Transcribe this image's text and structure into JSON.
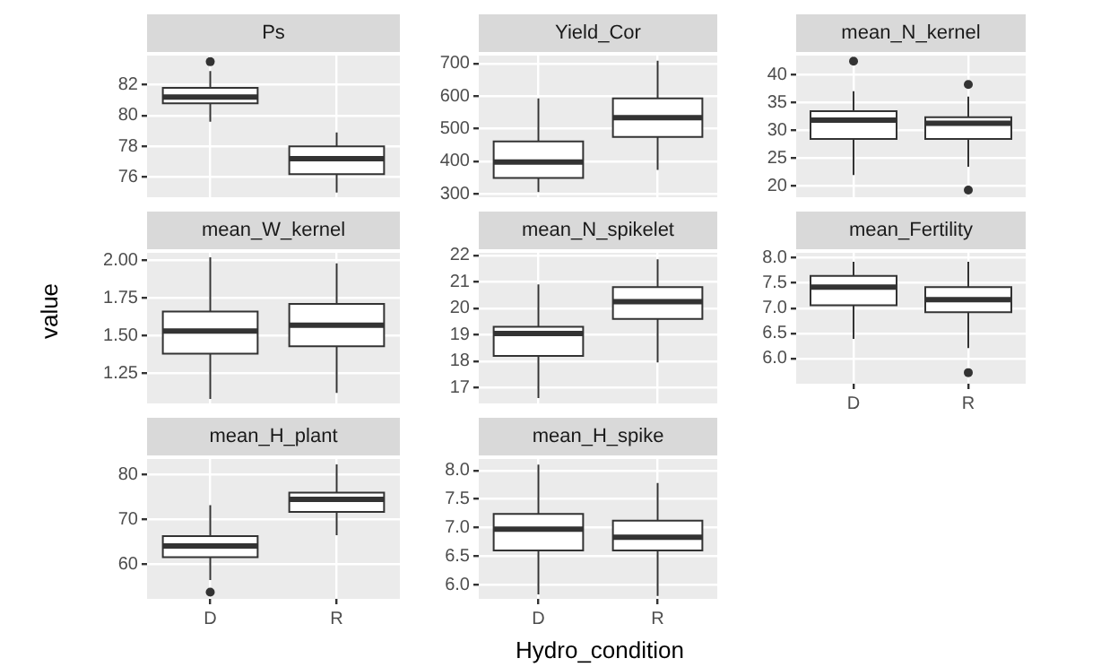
{
  "chart_data": [
    {
      "type": "box",
      "title": "Ps",
      "categories": [
        null,
        null
      ],
      "ylim": [
        74.7,
        83.9
      ],
      "yticks": [
        76,
        78,
        80,
        82
      ],
      "grid": true,
      "tick_labels": "y",
      "boxes": [
        {
          "low": 79.6,
          "q1": 80.8,
          "median": 81.2,
          "q3": 81.8,
          "high": 82.9,
          "outliers": [
            83.5
          ]
        },
        {
          "low": 75.0,
          "q1": 76.2,
          "median": 77.2,
          "q3": 78.0,
          "high": 78.9
        }
      ]
    },
    {
      "type": "box",
      "title": "Yield_Cor",
      "categories": [
        null,
        null
      ],
      "ylim": [
        290,
        724
      ],
      "yticks": [
        300,
        400,
        500,
        600,
        700
      ],
      "grid": true,
      "tick_labels": "y",
      "boxes": [
        {
          "low": 306,
          "q1": 349,
          "median": 398,
          "q3": 461,
          "high": 593
        },
        {
          "low": 374,
          "q1": 475,
          "median": 534,
          "q3": 593,
          "high": 708
        }
      ]
    },
    {
      "type": "box",
      "title": "mean_N_kernel",
      "categories": [
        null,
        null
      ],
      "ylim": [
        18,
        43.5
      ],
      "yticks": [
        20,
        25,
        30,
        35,
        40
      ],
      "grid": true,
      "tick_labels": "y",
      "boxes": [
        {
          "low": 22.0,
          "q1": 28.5,
          "median": 31.9,
          "q3": 33.5,
          "high": 37.1,
          "outliers": [
            42.5
          ]
        },
        {
          "low": 23.5,
          "q1": 28.5,
          "median": 31.3,
          "q3": 32.4,
          "high": 36.1,
          "outliers": [
            38.3,
            19.3
          ]
        }
      ]
    },
    {
      "type": "box",
      "title": "mean_W_kernel",
      "ylabel": "value",
      "categories": [
        null,
        null
      ],
      "ylim": [
        1.05,
        2.05
      ],
      "yticks": [
        {
          "value": 1.25,
          "label": "1.25"
        },
        {
          "value": 1.5,
          "label": "1.50"
        },
        {
          "value": 1.75,
          "label": "1.75"
        },
        {
          "value": 2,
          "label": "2.00"
        }
      ],
      "grid": true,
      "tick_labels": "y",
      "boxes": [
        {
          "low": 1.08,
          "q1": 1.38,
          "median": 1.53,
          "q3": 1.66,
          "high": 2.02
        },
        {
          "low": 1.12,
          "q1": 1.43,
          "median": 1.57,
          "q3": 1.71,
          "high": 1.98
        }
      ]
    },
    {
      "type": "box",
      "title": "mean_N_spikelet",
      "categories": [
        null,
        null
      ],
      "ylim": [
        16.4,
        22.1
      ],
      "yticks": [
        17,
        18,
        19,
        20,
        21,
        22
      ],
      "grid": true,
      "tick_labels": "y",
      "boxes": [
        {
          "low": 16.6,
          "q1": 18.2,
          "median": 19.05,
          "q3": 19.3,
          "high": 20.9
        },
        {
          "low": 17.95,
          "q1": 19.6,
          "median": 20.25,
          "q3": 20.8,
          "high": 21.85
        }
      ]
    },
    {
      "type": "box",
      "title": "mean_Fertility",
      "categories": [
        "D",
        "R"
      ],
      "ylim": [
        5.5,
        8.1
      ],
      "yticks": [
        {
          "value": 6,
          "label": "6.0"
        },
        {
          "value": 6.5,
          "label": "6.5"
        },
        {
          "value": 7,
          "label": "7.0"
        },
        {
          "value": 7.5,
          "label": "7.5"
        },
        {
          "value": 8,
          "label": "8.0"
        }
      ],
      "grid": true,
      "boxes": [
        {
          "low": 6.39,
          "q1": 7.06,
          "median": 7.42,
          "q3": 7.64,
          "high": 7.92
        },
        {
          "low": 6.21,
          "q1": 6.92,
          "median": 7.17,
          "q3": 7.42,
          "high": 7.92,
          "outliers": [
            5.72
          ]
        }
      ]
    },
    {
      "type": "box",
      "title": "mean_H_plant",
      "categories": [
        "D",
        "R"
      ],
      "ylim": [
        52.2,
        83.4
      ],
      "yticks": [
        60,
        70,
        80
      ],
      "grid": true,
      "boxes": [
        {
          "low": 56.4,
          "q1": 61.5,
          "median": 64.0,
          "q3": 66.2,
          "high": 73.1,
          "outliers": [
            53.7
          ]
        },
        {
          "low": 66.4,
          "q1": 71.6,
          "median": 74.4,
          "q3": 75.9,
          "high": 82.2
        }
      ]
    },
    {
      "type": "box",
      "title": "mean_H_spike",
      "xlabel": "Hydro_condition",
      "categories": [
        "D",
        "R"
      ],
      "ylim": [
        5.75,
        8.2
      ],
      "yticks": [
        {
          "value": 6,
          "label": "6.0"
        },
        {
          "value": 6.5,
          "label": "6.5"
        },
        {
          "value": 7,
          "label": "7.0"
        },
        {
          "value": 7.5,
          "label": "7.5"
        },
        {
          "value": 8,
          "label": "8.0"
        }
      ],
      "grid": true,
      "boxes": [
        {
          "low": 5.83,
          "q1": 6.6,
          "median": 6.97,
          "q3": 7.24,
          "high": 8.1
        },
        {
          "low": 5.8,
          "q1": 6.6,
          "median": 6.83,
          "q3": 7.12,
          "high": 7.78
        }
      ]
    }
  ]
}
